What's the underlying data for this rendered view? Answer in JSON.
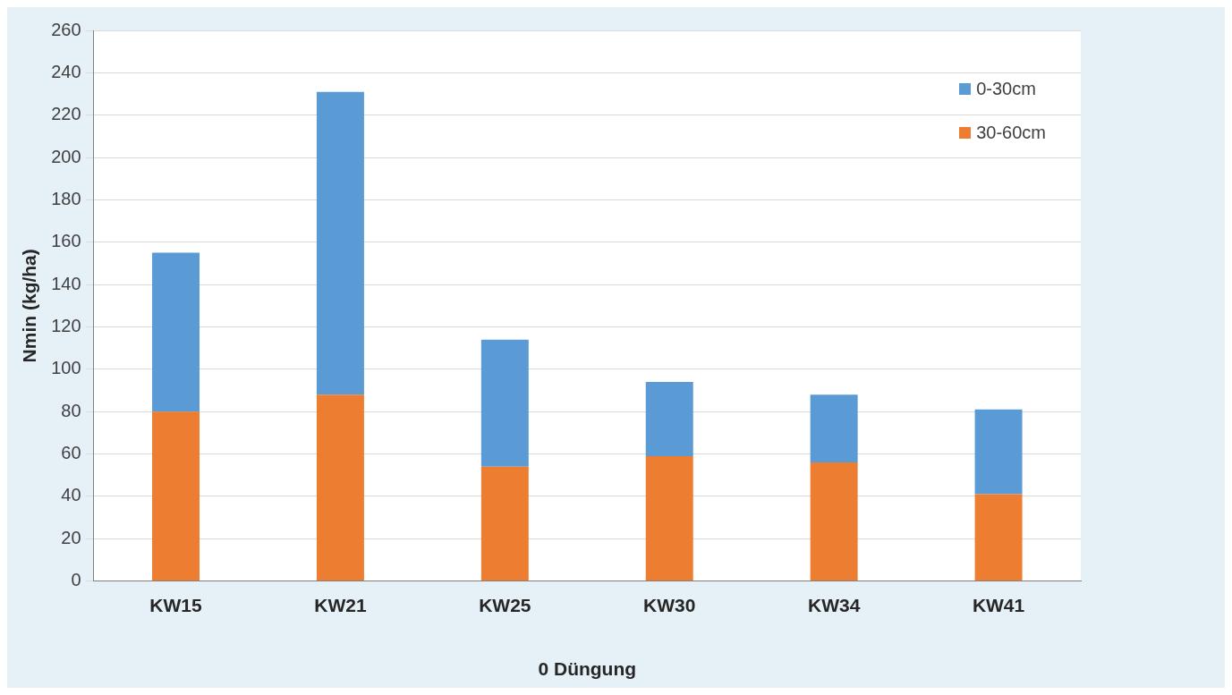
{
  "chart_data": {
    "type": "bar",
    "stacked": true,
    "categories": [
      "KW15",
      "KW21",
      "KW25",
      "KW30",
      "KW34",
      "KW41"
    ],
    "series": [
      {
        "name": "30-60cm",
        "color": "#ed7d31",
        "values": [
          80,
          88,
          54,
          59,
          56,
          41
        ]
      },
      {
        "name": "0-30cm",
        "color": "#5b9bd5",
        "values": [
          75,
          143,
          60,
          35,
          32,
          40
        ]
      }
    ],
    "xlabel": "0 Düngung",
    "ylabel": "Nmin (kg/ha)",
    "ylim": [
      0,
      260
    ],
    "yticks": [
      0,
      20,
      40,
      60,
      80,
      100,
      120,
      140,
      160,
      180,
      200,
      220,
      240,
      260
    ],
    "grid": "y",
    "legend": "top right"
  }
}
